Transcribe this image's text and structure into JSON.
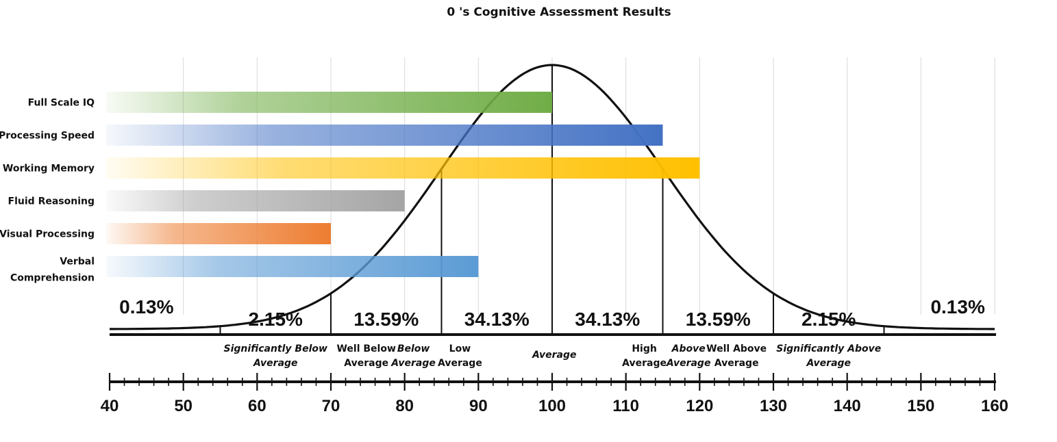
{
  "chart_data": {
    "type": "bar",
    "title": "0 's Cognitive Assessment Results",
    "orientation": "horizontal",
    "categories": [
      "Full Scale IQ",
      "Processing Speed",
      "Working Memory",
      "Fluid Reasoning",
      "Visual Processing",
      "Verbal Comprehension"
    ],
    "values": [
      100,
      115,
      120,
      80,
      70,
      90
    ],
    "colors": [
      "#70AD47",
      "#4472C4",
      "#FFC000",
      "#A5A5A5",
      "#ED7D31",
      "#5B9BD5"
    ],
    "xlim": [
      40,
      160
    ],
    "xticks": [
      40,
      50,
      60,
      70,
      80,
      90,
      100,
      110,
      120,
      130,
      140,
      150,
      160
    ],
    "grid": true,
    "distribution": {
      "mean": 100,
      "sd": 15,
      "percentages": [
        {
          "label": "0.13%",
          "x": 45
        },
        {
          "label": "2.15%",
          "x": 62.5
        },
        {
          "label": "13.59%",
          "x": 77.5
        },
        {
          "label": "34.13%",
          "x": 92.5
        },
        {
          "label": "34.13%",
          "x": 107.5
        },
        {
          "label": "13.59%",
          "x": 122.5
        },
        {
          "label": "2.15%",
          "x": 137.5
        },
        {
          "label": "0.13%",
          "x": 155
        }
      ],
      "classification_labels": [
        {
          "lines": [
            "Significantly Below",
            "Average"
          ],
          "x": 62.5,
          "italic": true
        },
        {
          "lines": [
            "Well Below",
            "Average"
          ],
          "x": 74.8,
          "italic": false
        },
        {
          "lines": [
            "Below",
            "Average"
          ],
          "x": 81.2,
          "italic": true
        },
        {
          "lines": [
            "Low",
            "Average"
          ],
          "x": 87.5,
          "italic": false
        },
        {
          "lines": [
            "Average"
          ],
          "x": 100.3,
          "italic": true
        },
        {
          "lines": [
            "High",
            "Average"
          ],
          "x": 112.5,
          "italic": false
        },
        {
          "lines": [
            "Above",
            "Average"
          ],
          "x": 118.5,
          "italic": true
        },
        {
          "lines": [
            "Well Above",
            "Average"
          ],
          "x": 125,
          "italic": false
        },
        {
          "lines": [
            "Significantly Above",
            "Average"
          ],
          "x": 137.5,
          "italic": true
        }
      ]
    }
  }
}
